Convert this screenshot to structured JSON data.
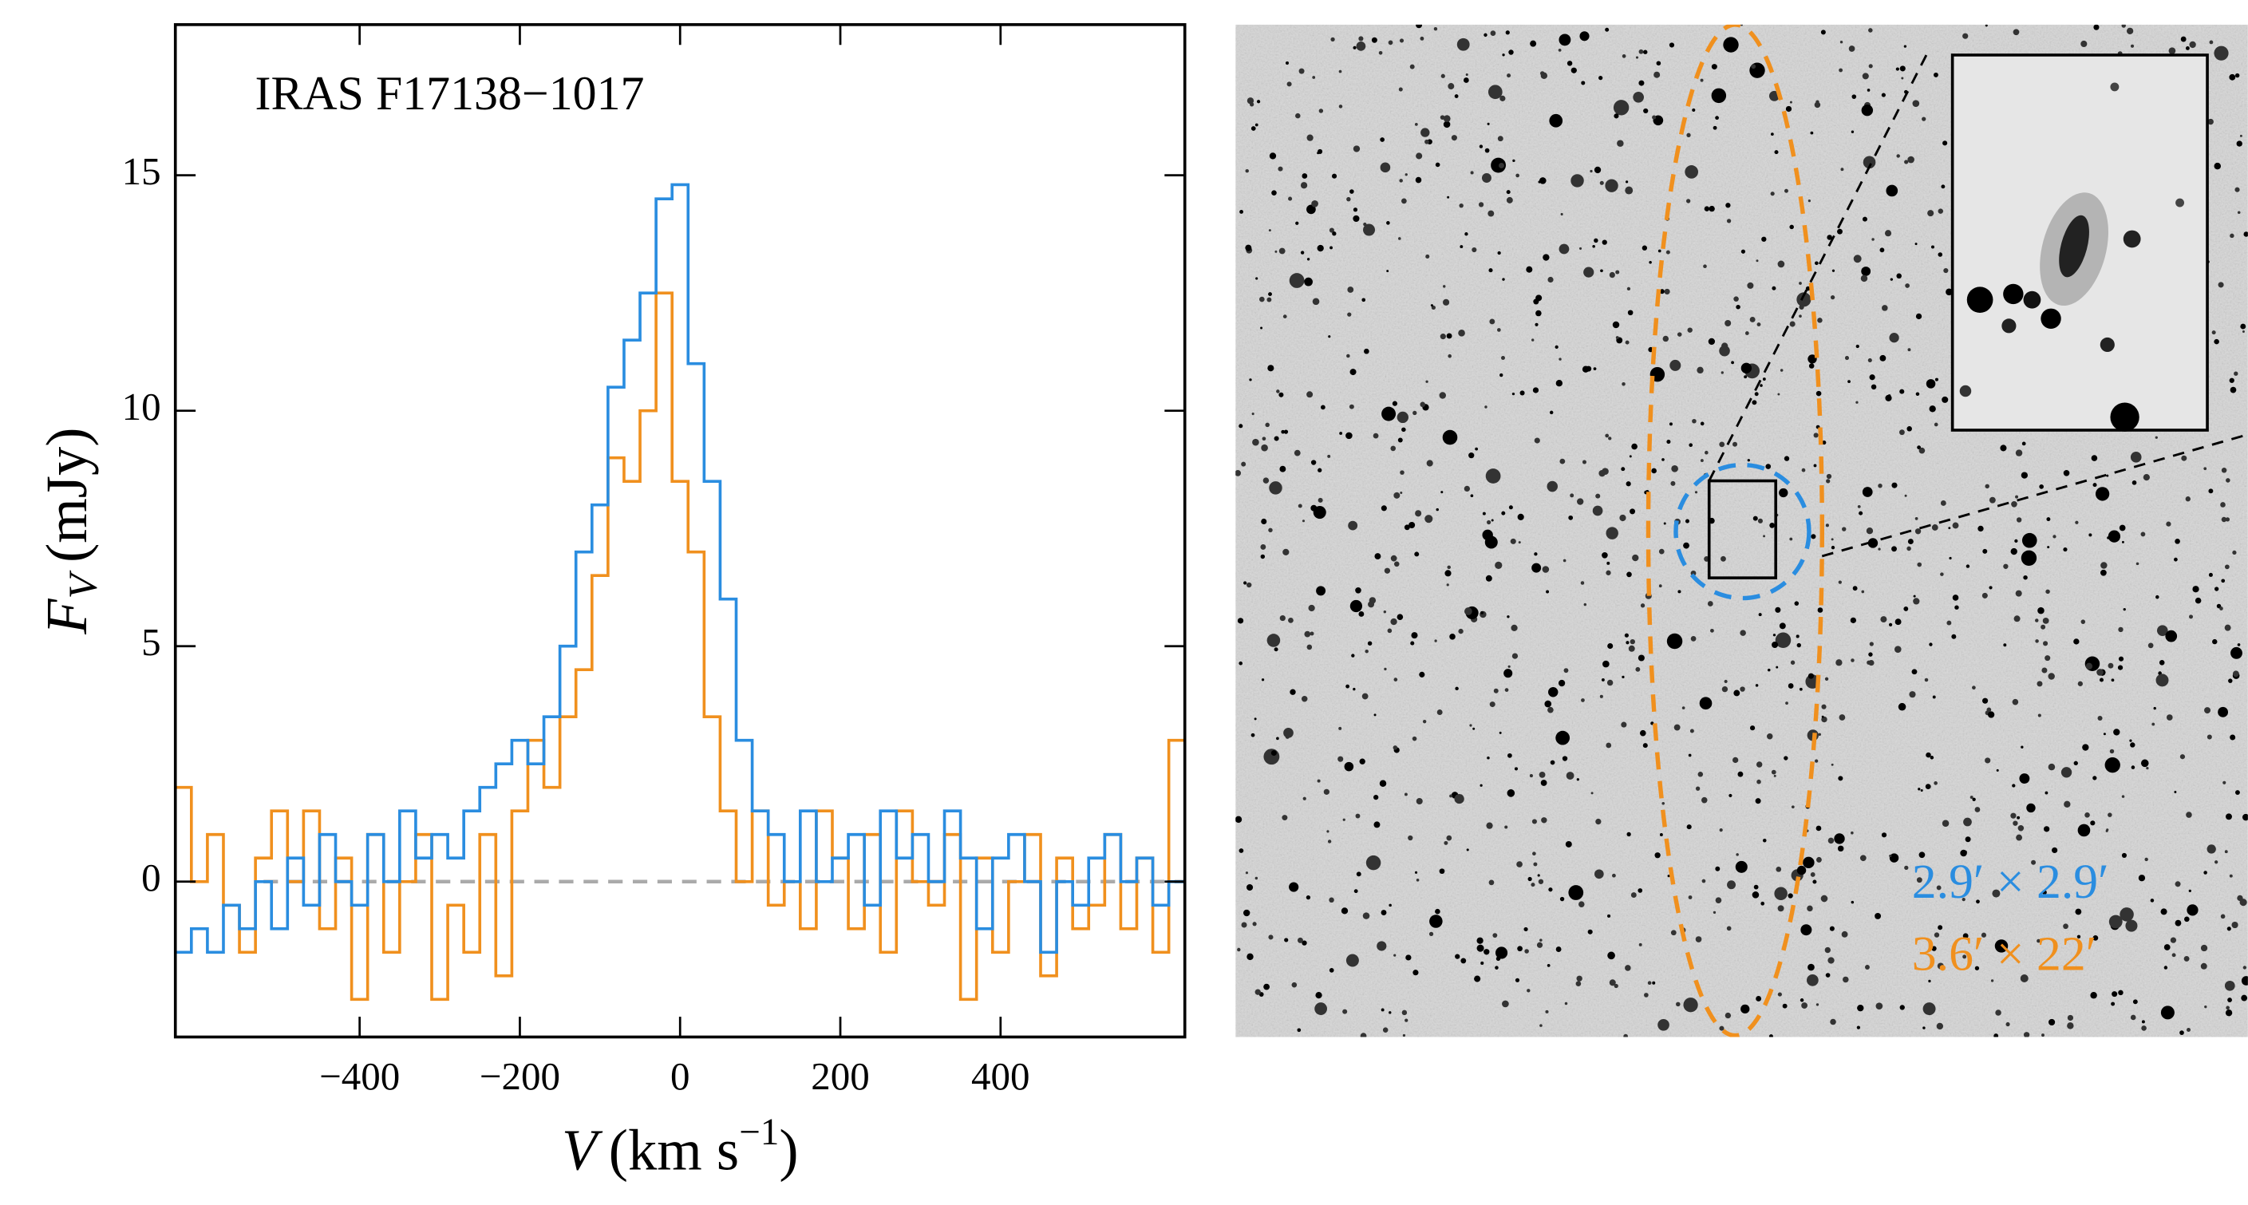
{
  "chart_data": {
    "type": "step",
    "annotation": "IRAS F17138−1017",
    "x_label": {
      "symbol": "V",
      "unit": "(km s",
      "exponent": "−1",
      "close": ")"
    },
    "y_label": {
      "symbol": "F",
      "subscript": "V",
      "unit": "(mJy)"
    },
    "x": [
      -620,
      -600,
      -580,
      -560,
      -540,
      -520,
      -500,
      -480,
      -460,
      -440,
      -420,
      -400,
      -380,
      -360,
      -340,
      -320,
      -300,
      -280,
      -260,
      -240,
      -220,
      -200,
      -180,
      -160,
      -140,
      -120,
      -100,
      -80,
      -60,
      -40,
      -20,
      0,
      20,
      40,
      60,
      80,
      100,
      120,
      140,
      160,
      180,
      200,
      220,
      240,
      260,
      280,
      300,
      320,
      340,
      360,
      380,
      400,
      420,
      440,
      460,
      480,
      500,
      520,
      540,
      560,
      580,
      600,
      620
    ],
    "series": [
      {
        "name": "2.9′ × 2.9′",
        "color": "#2a8de0",
        "values": [
          -1.5,
          -1,
          -1.5,
          -0.5,
          -1,
          0,
          -1,
          0.5,
          -0.5,
          1,
          0,
          -0.5,
          1,
          0,
          1.5,
          0.5,
          1,
          0.5,
          1.5,
          2,
          2.5,
          3,
          2.5,
          3.5,
          5,
          7,
          8,
          10.5,
          11.5,
          12.5,
          14.5,
          14.8,
          11,
          8.5,
          6,
          3,
          1.5,
          1,
          0,
          1.5,
          0,
          0.5,
          1,
          -0.5,
          1.5,
          0.5,
          1,
          0,
          1.5,
          0.5,
          -1,
          0.5,
          1,
          0,
          -1.5,
          0,
          -0.5,
          0.5,
          1,
          0,
          0.5,
          -0.5,
          0
        ]
      },
      {
        "name": "3.6′ × 22′",
        "color": "#f0901e",
        "values": [
          2,
          0,
          1,
          -0.5,
          -1.5,
          0.5,
          1.5,
          0,
          1.5,
          -1,
          0.5,
          -2.5,
          1,
          -1.5,
          0,
          1,
          -2.5,
          -0.5,
          -1.5,
          1,
          -2,
          1.5,
          3,
          2,
          3.5,
          4.5,
          6.5,
          9,
          8.5,
          10,
          12.5,
          8.5,
          7,
          3.5,
          1.5,
          0,
          1.5,
          -0.5,
          0,
          -1,
          1.5,
          0.5,
          -1,
          1,
          -1.5,
          1.5,
          0,
          -0.5,
          1,
          -2.5,
          0.5,
          -1.5,
          0,
          1,
          -2,
          0.5,
          -1,
          -0.5,
          1,
          -1,
          0.5,
          -1.5,
          3
        ]
      }
    ],
    "xlim": [
      -630,
      630
    ],
    "ylim": [
      -3.3,
      18.2
    ],
    "xticks": [
      {
        "value": -400,
        "label": "−400"
      },
      {
        "value": -200,
        "label": "−200"
      },
      0,
      200,
      400
    ],
    "yticks": [
      0,
      5,
      10,
      15
    ],
    "reference_line": {
      "y": 0,
      "x_start": -520,
      "color": "#aaaaaa"
    }
  }
}
